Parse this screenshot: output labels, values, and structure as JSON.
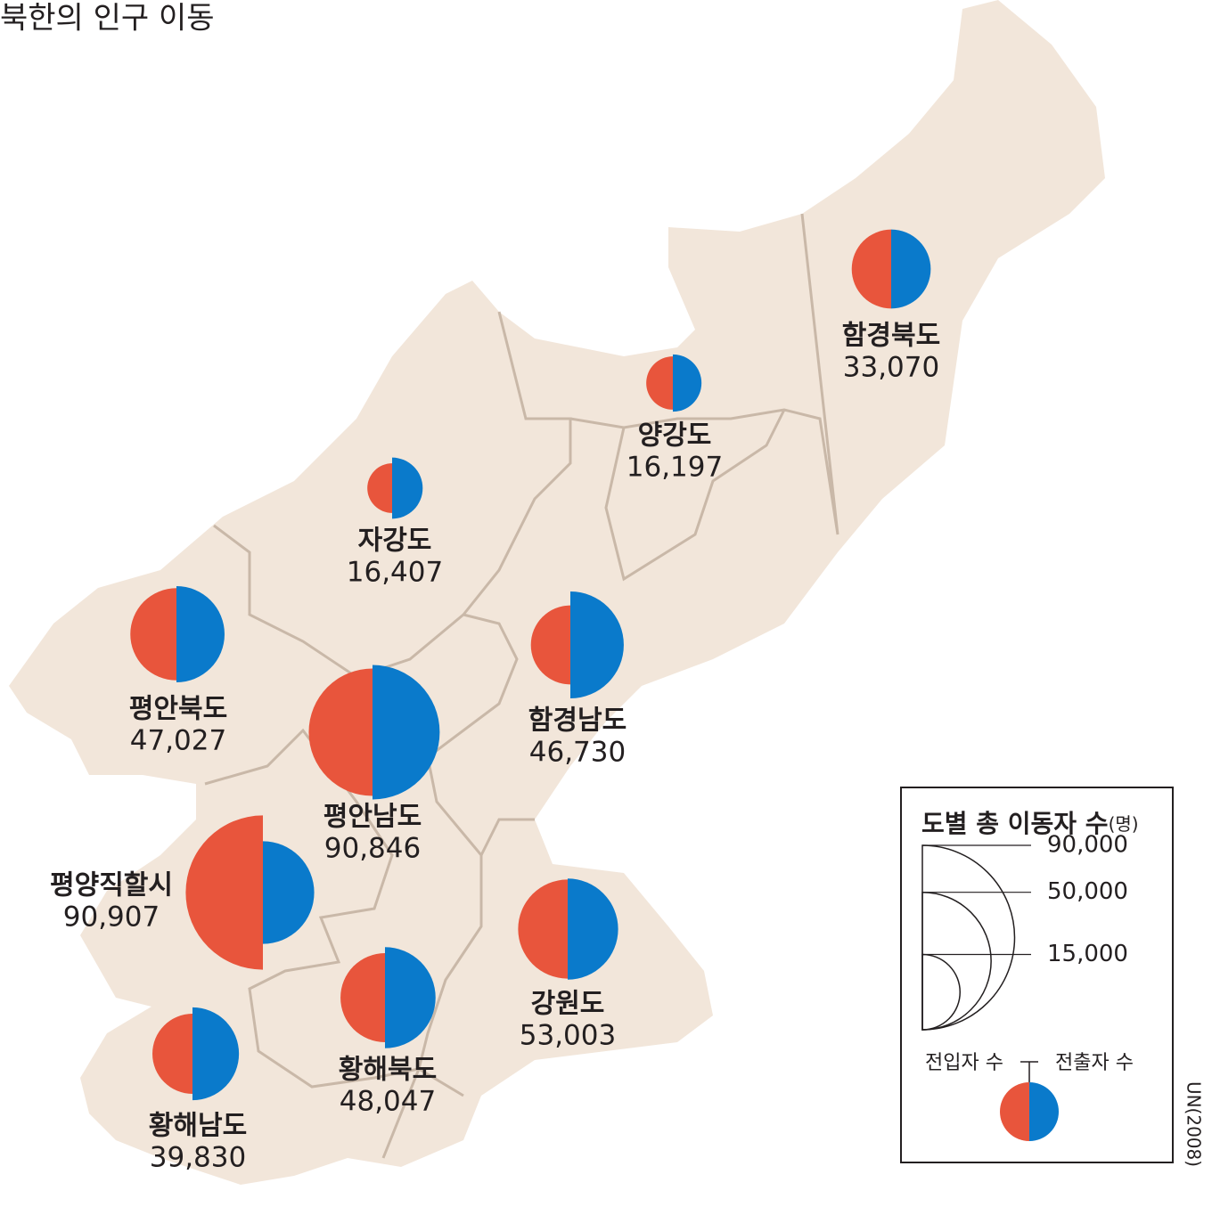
{
  "title": "북한의 인구 이동",
  "regions": [
    {
      "name": "함경북도",
      "total": 33070,
      "total_label": "33,070",
      "in": 16500,
      "out": 16570
    },
    {
      "name": "양강도",
      "total": 16197,
      "total_label": "16,197",
      "in": 7500,
      "out": 8697
    },
    {
      "name": "자강도",
      "total": 16407,
      "total_label": "16,407",
      "in": 6500,
      "out": 9907
    },
    {
      "name": "평안북도",
      "total": 47027,
      "total_label": "47,027",
      "in": 22500,
      "out": 24527
    },
    {
      "name": "평안남도",
      "total": 90846,
      "total_label": "90,846",
      "in": 43000,
      "out": 47846
    },
    {
      "name": "함경남도",
      "total": 46730,
      "total_label": "46,730",
      "in": 16500,
      "out": 30230
    },
    {
      "name": "평양직할시",
      "total": 90907,
      "total_label": "90,907",
      "in": 63000,
      "out": 27907
    },
    {
      "name": "강원도",
      "total": 53003,
      "total_label": "53,003",
      "in": 26000,
      "out": 27003
    },
    {
      "name": "황해북도",
      "total": 48047,
      "total_label": "48,047",
      "in": 21000,
      "out": 27047
    },
    {
      "name": "황해남도",
      "total": 39830,
      "total_label": "39,830",
      "in": 17000,
      "out": 22830
    }
  ],
  "in_color": "#e8553c",
  "out_color": "#0a7acb",
  "legend": {
    "title": "도별 총 이동자 수",
    "unit": "(명)",
    "sizes": [
      {
        "value": 90000,
        "label": "90,000"
      },
      {
        "value": 50000,
        "label": "50,000"
      },
      {
        "value": 15000,
        "label": "15,000"
      }
    ],
    "in_label": "전입자 수",
    "out_label": "전출자 수"
  },
  "source": "UN(2008)"
}
